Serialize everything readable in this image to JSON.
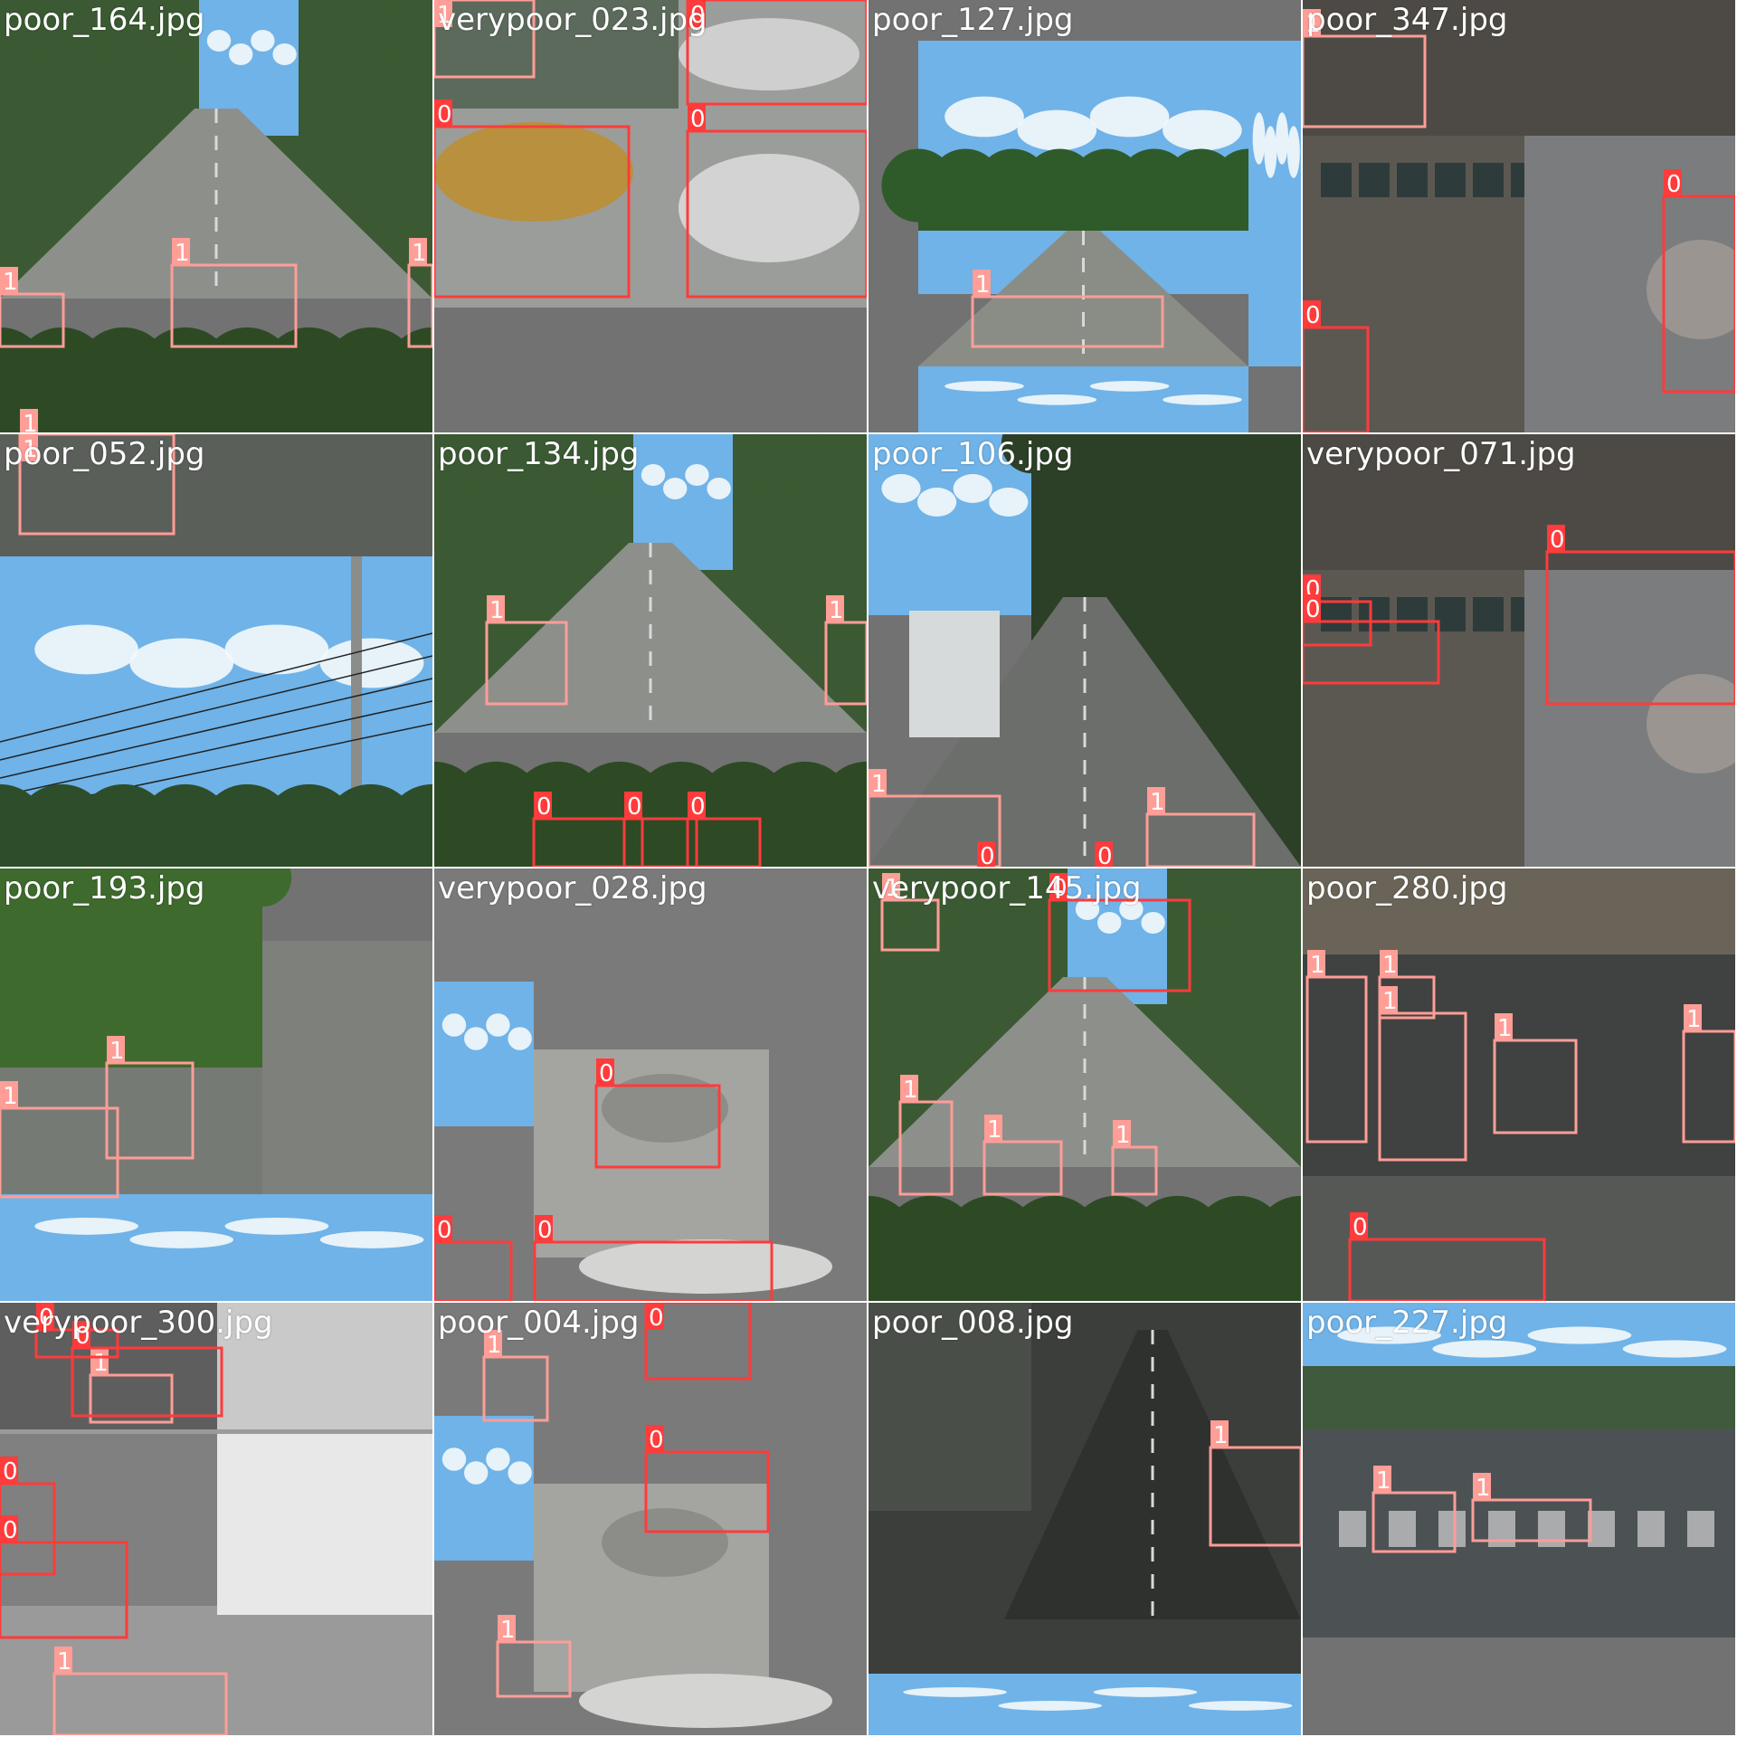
{
  "colors": {
    "class0": "#ff3b3b",
    "class1": "#ff9d97",
    "background": "#727272"
  },
  "tiles": [
    {
      "filename": "poor_164.jpg",
      "scene": "forest-road"
    },
    {
      "filename": "verypoor_023.jpg",
      "scene": "puddle"
    },
    {
      "filename": "poor_127.jpg",
      "scene": "sky-road"
    },
    {
      "filename": "poor_347.jpg",
      "scene": "wet-street"
    },
    {
      "filename": "poor_052.jpg",
      "scene": "sky-powerline"
    },
    {
      "filename": "poor_134.jpg",
      "scene": "forest-road"
    },
    {
      "filename": "poor_106.jpg",
      "scene": "truck-road"
    },
    {
      "filename": "verypoor_071.jpg",
      "scene": "wet-street"
    },
    {
      "filename": "poor_193.jpg",
      "scene": "grass-road"
    },
    {
      "filename": "verypoor_028.jpg",
      "scene": "pothole-closeup"
    },
    {
      "filename": "verypoor_145.jpg",
      "scene": "forest-road"
    },
    {
      "filename": "poor_280.jpg",
      "scene": "town-road"
    },
    {
      "filename": "verypoor_300.jpg",
      "scene": "grayscale"
    },
    {
      "filename": "poor_004.jpg",
      "scene": "pothole-closeup"
    },
    {
      "filename": "poor_008.jpg",
      "scene": "dark-road"
    },
    {
      "filename": "poor_227.jpg",
      "scene": "crosswalk"
    }
  ],
  "detections": [
    [
      {
        "cls": "1"
      },
      {
        "cls": "1"
      },
      {
        "cls": "1"
      },
      {
        "cls": "1"
      }
    ],
    [
      {
        "cls": "1"
      },
      {
        "cls": "0"
      },
      {
        "cls": "0"
      },
      {
        "cls": "0"
      }
    ],
    [
      {
        "cls": "1"
      }
    ],
    [
      {
        "cls": "1"
      },
      {
        "cls": "0"
      },
      {
        "cls": "0"
      }
    ],
    [
      {
        "cls": "1"
      }
    ],
    [
      {
        "cls": "1"
      },
      {
        "cls": "1"
      },
      {
        "cls": "0"
      },
      {
        "cls": "0"
      },
      {
        "cls": "0"
      }
    ],
    [
      {
        "cls": "1"
      },
      {
        "cls": "1"
      },
      {
        "cls": "0"
      },
      {
        "cls": "0"
      }
    ],
    [
      {
        "cls": "0"
      },
      {
        "cls": "0"
      },
      {
        "cls": "0"
      }
    ],
    [
      {
        "cls": "1"
      },
      {
        "cls": "1"
      }
    ],
    [
      {
        "cls": "0"
      },
      {
        "cls": "0"
      },
      {
        "cls": "0"
      }
    ],
    [
      {
        "cls": "1"
      },
      {
        "cls": "0"
      },
      {
        "cls": "1"
      },
      {
        "cls": "1"
      },
      {
        "cls": "1"
      }
    ],
    [
      {
        "cls": "1"
      },
      {
        "cls": "1"
      },
      {
        "cls": "1"
      },
      {
        "cls": "1"
      },
      {
        "cls": "1"
      },
      {
        "cls": "0"
      }
    ],
    [
      {
        "cls": "1"
      },
      {
        "cls": "0"
      },
      {
        "cls": "0"
      },
      {
        "cls": "0"
      },
      {
        "cls": "0"
      },
      {
        "cls": "1"
      }
    ],
    [
      {
        "cls": "1"
      },
      {
        "cls": "0"
      },
      {
        "cls": "0"
      },
      {
        "cls": "1"
      }
    ],
    [
      {
        "cls": "1"
      }
    ],
    [
      {
        "cls": "1"
      },
      {
        "cls": "1"
      }
    ]
  ]
}
